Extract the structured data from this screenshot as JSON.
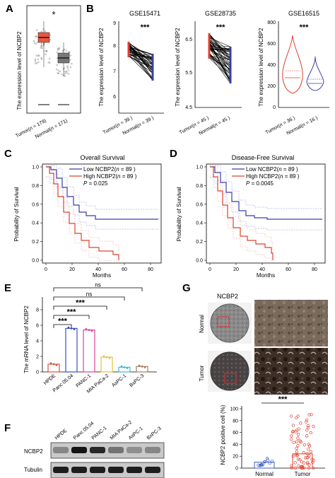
{
  "panels": {
    "A": {
      "letter": "A",
      "ylabel": "The expression level of NCBP2",
      "significance": "*",
      "groups": [
        {
          "label_prefix": "Tumor(",
          "n_sym": "n",
          "label_suffix": " = 179)",
          "box": {
            "q1": 5.2,
            "median": 5.4,
            "q3": 5.6,
            "min": 4.6,
            "max": 6.2
          },
          "color": "#e8573e"
        },
        {
          "label_prefix": "Normal(",
          "n_sym": "n",
          "label_suffix": " = 171)",
          "box": {
            "q1": 3.5,
            "median": 3.8,
            "q3": 4.0,
            "min": 3.0,
            "max": 4.6
          },
          "color": "#777777"
        }
      ]
    },
    "B": {
      "letter": "B",
      "ylabel": "The expression level of NCBP2",
      "subpanels": [
        {
          "title": "GSE15471",
          "sig": "***",
          "yticks": [
            "6",
            "7",
            "8",
            "9"
          ],
          "ylim": [
            5.6,
            9.2
          ],
          "groups": [
            {
              "label_prefix": "Tumor(",
              "n_sym": "n",
              "label_suffix": " = 39 )"
            },
            {
              "label_prefix": "Normal(",
              "n_sym": "n",
              "label_suffix": " = 39 )"
            }
          ]
        },
        {
          "title": "GSE28735",
          "sig": "***",
          "yticks": [
            "4.5",
            "5.5",
            "6.5"
          ],
          "ylim": [
            4.5,
            7.0
          ],
          "groups": [
            {
              "label_prefix": "Tumor(",
              "n_sym": "n",
              "label_suffix": " = 45 )"
            },
            {
              "label_prefix": "Normal(",
              "n_sym": "n",
              "label_suffix": " = 45 )"
            }
          ]
        },
        {
          "title": "GSE16515",
          "sig": "***",
          "yticks": [
            "0",
            "200",
            "400",
            "600",
            "800"
          ],
          "ylim": [
            0,
            800
          ],
          "groups": [
            {
              "label_prefix": "Tumor(",
              "n_sym": "n",
              "label_suffix": " = 36 )"
            },
            {
              "label_prefix": "Normal(",
              "n_sym": "n",
              "label_suffix": " = 16 )"
            }
          ]
        }
      ]
    },
    "C": {
      "letter": "C",
      "title": "Overall Survival",
      "xlabel": "Months",
      "ylabel": "Probability of Survival",
      "xticks": [
        "0",
        "20",
        "40",
        "60",
        "80"
      ],
      "yticks": [
        "0.0",
        "0.2",
        "0.4",
        "0.6",
        "0.8",
        "1.0"
      ],
      "legend": [
        {
          "prefix": "Low NCBP2(",
          "n_sym": "n",
          "suffix": " = 89 )",
          "color": "#3a3fa8"
        },
        {
          "prefix": "High NCBP2(",
          "n_sym": "n",
          "suffix": " = 89 )",
          "color": "#e0402e"
        }
      ],
      "p_sym": "P",
      "p_value": " = 0.025"
    },
    "D": {
      "letter": "D",
      "title": "Disease-Free Survival",
      "xlabel": "Months",
      "ylabel": "Probability of Survival",
      "xticks": [
        "0",
        "20",
        "40",
        "60",
        "80"
      ],
      "yticks": [
        "0.0",
        "0.2",
        "0.4",
        "0.6",
        "0.8",
        "1.0"
      ],
      "legend": [
        {
          "prefix": "Low NCBP2(",
          "n_sym": "n",
          "suffix": " = 89 )",
          "color": "#3a3fa8"
        },
        {
          "prefix": "High NCBP2(",
          "n_sym": "n",
          "suffix": " = 89 )",
          "color": "#e0402e"
        }
      ],
      "p_sym": "P",
      "p_value": " = 0.0045"
    },
    "E": {
      "letter": "E",
      "ylabel": "The mRNA level of NCBP2",
      "yticks": [
        "0",
        "2",
        "4",
        "6",
        "8"
      ],
      "bars": [
        {
          "label": "HPDE",
          "value": 1.0,
          "color": "#e05040"
        },
        {
          "label": "Panc 05.04",
          "value": 5.6,
          "color": "#3a4fc0"
        },
        {
          "label": "PANC-1",
          "value": 5.4,
          "color": "#e040a0"
        },
        {
          "label": "MIA PaCa-2",
          "value": 1.9,
          "color": "#e8c040"
        },
        {
          "label": "AsPC-1",
          "value": 0.6,
          "color": "#40b8d8"
        },
        {
          "label": "BxPC-3",
          "value": 0.7,
          "color": "#a08060"
        }
      ],
      "comparisons": [
        "***",
        "***",
        "***",
        "ns",
        "ns"
      ]
    },
    "F": {
      "letter": "F",
      "lanes": [
        "HPDE",
        "Panc 05.04",
        "PANC-1",
        "MIA PaCa-2",
        "AsPC-1",
        "BxPC-3"
      ],
      "rows": [
        {
          "name": "NCBP2",
          "intensity": [
            0.35,
            0.95,
            0.85,
            0.45,
            0.3,
            0.35
          ]
        },
        {
          "name": "Tubulin",
          "intensity": [
            0.9,
            0.9,
            0.9,
            0.9,
            0.9,
            0.9
          ]
        }
      ]
    },
    "G": {
      "letter": "G",
      "title": "NCBP2",
      "row_labels": [
        "Normal",
        "Tumor"
      ],
      "bar_chart": {
        "ylabel": "NCBP2 positive cell (%)",
        "yticks": [
          "0",
          "20",
          "40",
          "60",
          "80",
          "100"
        ],
        "categories": [
          "Normal",
          "Tumor"
        ],
        "values": [
          10,
          24
        ],
        "sig": "***"
      }
    }
  }
}
